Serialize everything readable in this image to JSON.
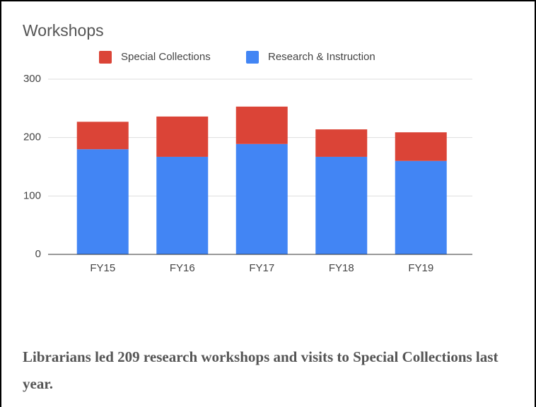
{
  "chart_data": {
    "type": "stacked_bar",
    "title": "Workshops",
    "categories": [
      "FY15",
      "FY16",
      "FY17",
      "FY18",
      "FY19"
    ],
    "series": [
      {
        "name": "Special Collections",
        "color": "#db4437",
        "values": [
          47,
          69,
          64,
          47,
          49
        ]
      },
      {
        "name": "Research & Instruction",
        "color": "#4285f4",
        "values": [
          180,
          167,
          189,
          167,
          160
        ]
      }
    ],
    "ylim": [
      0,
      300
    ],
    "yticks": [
      0,
      100,
      200,
      300
    ],
    "grid": true,
    "legend": "top"
  },
  "caption": "Librarians led 209 research workshops and visits to Special Collections last year."
}
